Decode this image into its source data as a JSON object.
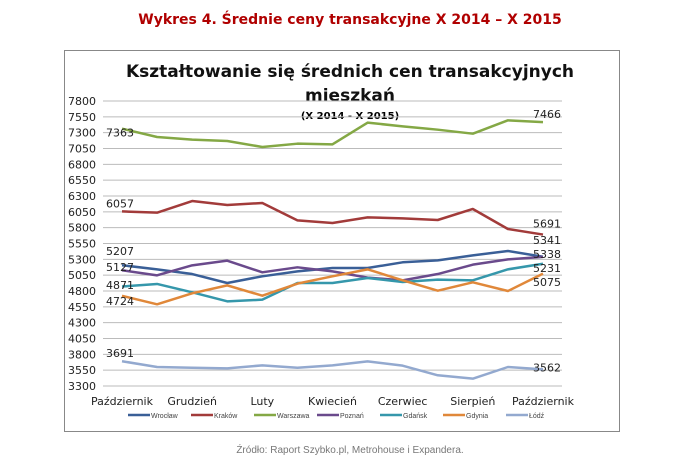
{
  "heading": "Wykres 4. Średnie ceny transakcyjne X 2014 – X 2015",
  "source": "Źródło: Raport Szybko.pl, Metrohouse i Expandera.",
  "chart_data": {
    "type": "line",
    "title": "Kształtowanie się średnich cen transakcyjnych mieszkań",
    "title_lines": [
      "Kształtowanie się średnich cen transakcyjnych",
      "mieszkań"
    ],
    "subtitle": "(X 2014 - X 2015)",
    "ylim": [
      3300,
      7800
    ],
    "yticks": [
      3300,
      3550,
      3800,
      4050,
      4300,
      4550,
      4800,
      5050,
      5300,
      5550,
      5800,
      6050,
      6300,
      6550,
      6800,
      7050,
      7300,
      7550,
      7800
    ],
    "xtick_labels": [
      {
        "i": 0,
        "label": "Październik"
      },
      {
        "i": 2,
        "label": "Grudzień"
      },
      {
        "i": 4,
        "label": "Luty"
      },
      {
        "i": 6,
        "label": "Kwiecień"
      },
      {
        "i": 8,
        "label": "Czerwiec"
      },
      {
        "i": 10,
        "label": "Sierpień"
      },
      {
        "i": 12,
        "label": "Październik"
      }
    ],
    "grid": true,
    "legend": "bottom",
    "series": [
      {
        "name": "Wrocław",
        "color": "#3a5f97",
        "values": [
          5207,
          5142,
          5068,
          4926,
          5032,
          5110,
          5163,
          5163,
          5253,
          5284,
          5363,
          5432,
          5341
        ],
        "labels": [
          "5207",
          "5341"
        ]
      },
      {
        "name": "Kraków",
        "color": "#a23b3a",
        "values": [
          6057,
          6037,
          6221,
          6158,
          6190,
          5916,
          5874,
          5963,
          5947,
          5921,
          6095,
          5779,
          5691
        ],
        "labels": [
          "6057",
          "5691"
        ]
      },
      {
        "name": "Warszawa",
        "color": "#84a845",
        "values": [
          7363,
          7232,
          7190,
          7168,
          7074,
          7126,
          7116,
          7458,
          7400,
          7347,
          7284,
          7495,
          7466
        ],
        "labels": [
          "7363",
          "7466"
        ]
      },
      {
        "name": "Poznań",
        "color": "#6a4a8c",
        "values": [
          5127,
          5047,
          5205,
          5279,
          5095,
          5174,
          5110,
          5011,
          4968,
          5068,
          5216,
          5300,
          5338
        ],
        "labels": [
          "5127",
          "5338"
        ]
      },
      {
        "name": "Gdańsk",
        "color": "#3597ab",
        "values": [
          4871,
          4911,
          4779,
          4637,
          4663,
          4926,
          4926,
          5005,
          4942,
          4979,
          4968,
          5142,
          5231
        ],
        "labels": [
          "4871",
          "5231"
        ]
      },
      {
        "name": "Gdynia",
        "color": "#e0883a",
        "values": [
          4724,
          4590,
          4763,
          4889,
          4726,
          4916,
          5032,
          5142,
          4968,
          4805,
          4937,
          4800,
          5075
        ],
        "labels": [
          "4724",
          "5075"
        ]
      },
      {
        "name": "Łódź",
        "color": "#93a9cf",
        "values": [
          3691,
          3600,
          3589,
          3579,
          3626,
          3589,
          3626,
          3689,
          3621,
          3469,
          3416,
          3600,
          3562
        ],
        "labels": [
          "3691",
          "3562"
        ]
      }
    ]
  }
}
